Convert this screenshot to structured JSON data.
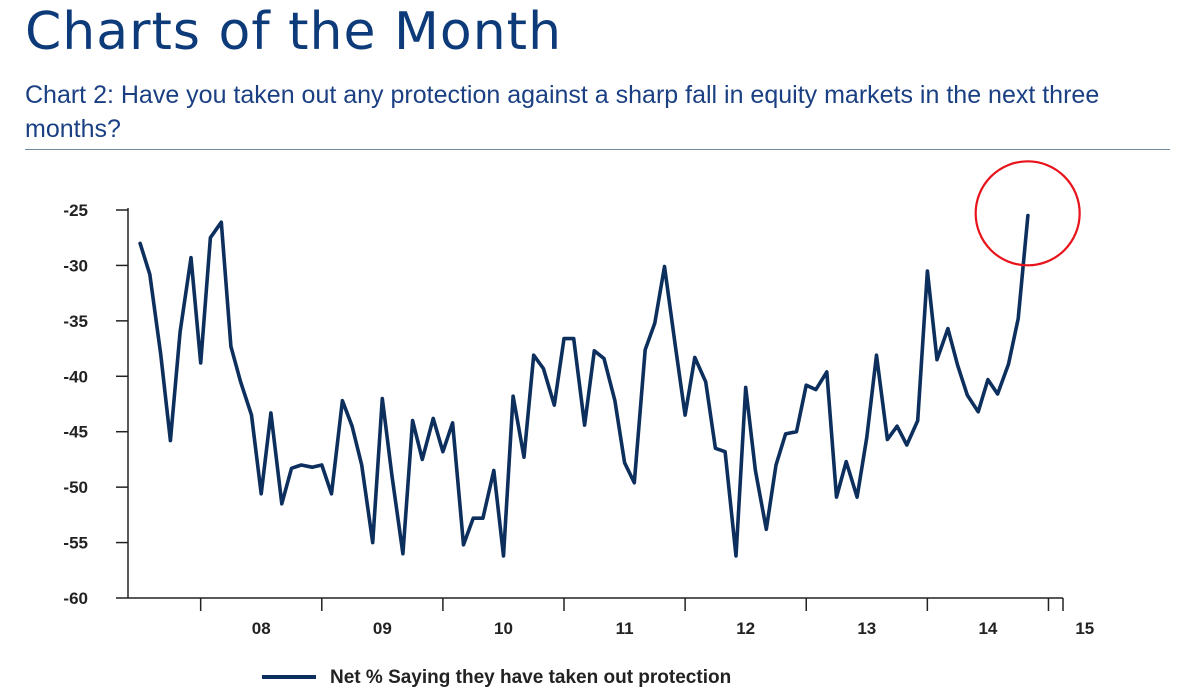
{
  "header": {
    "title": "Charts of the Month",
    "subtitle": "Chart 2: Have you taken out any protection against a sharp fall in equity markets in the next three months?"
  },
  "colors": {
    "line": "#0d2f5e",
    "axis": "#222222",
    "title": "#0d3a78",
    "highlight_circle": "#e8131b"
  },
  "chart_data": {
    "type": "line",
    "title": "Chart 2: Have you taken out any protection against a sharp fall in equity markets in the next three months?",
    "xlabel": "",
    "ylabel": "",
    "ylim": [
      -60,
      -25
    ],
    "yticks": [
      "-25",
      "-30",
      "-35",
      "-40",
      "-45",
      "-50",
      "-55",
      "-60"
    ],
    "ytick_values": [
      -25,
      -30,
      -35,
      -40,
      -45,
      -50,
      -55,
      -60
    ],
    "xlim": [
      2007.4,
      2015.12
    ],
    "x_tick_labels": [
      "08",
      "09",
      "10",
      "11",
      "12",
      "13",
      "14",
      "15"
    ],
    "x_tick_label_positions": [
      2008.5,
      2009.5,
      2010.5,
      2011.5,
      2012.5,
      2013.5,
      2014.5,
      2015.3
    ],
    "x_tick_marks": [
      2008,
      2009,
      2010,
      2011,
      2012,
      2013,
      2014,
      2015
    ],
    "grid": false,
    "legend": "bottom-center",
    "series": [
      {
        "name": "Net % Saying they have taken out protection",
        "points": [
          [
            2007.5,
            -28.0
          ],
          [
            2007.58,
            -30.8
          ],
          [
            2007.67,
            -38.0
          ],
          [
            2007.75,
            -45.8
          ],
          [
            2007.83,
            -36.0
          ],
          [
            2007.92,
            -29.3
          ],
          [
            2008.0,
            -38.8
          ],
          [
            2008.08,
            -27.5
          ],
          [
            2008.17,
            -26.1
          ],
          [
            2008.25,
            -37.3
          ],
          [
            2008.33,
            -40.5
          ],
          [
            2008.42,
            -43.5
          ],
          [
            2008.5,
            -50.6
          ],
          [
            2008.58,
            -43.3
          ],
          [
            2008.67,
            -51.5
          ],
          [
            2008.75,
            -48.3
          ],
          [
            2008.83,
            -48.0
          ],
          [
            2008.92,
            -48.2
          ],
          [
            2009.0,
            -48.0
          ],
          [
            2009.08,
            -50.6
          ],
          [
            2009.17,
            -42.2
          ],
          [
            2009.25,
            -44.5
          ],
          [
            2009.33,
            -48.0
          ],
          [
            2009.42,
            -55.0
          ],
          [
            2009.5,
            -42.0
          ],
          [
            2009.58,
            -49.0
          ],
          [
            2009.67,
            -56.0
          ],
          [
            2009.75,
            -44.0
          ],
          [
            2009.83,
            -47.5
          ],
          [
            2009.92,
            -43.8
          ],
          [
            2010.0,
            -46.8
          ],
          [
            2010.08,
            -44.2
          ],
          [
            2010.17,
            -55.2
          ],
          [
            2010.25,
            -52.8
          ],
          [
            2010.33,
            -52.8
          ],
          [
            2010.42,
            -48.5
          ],
          [
            2010.5,
            -56.2
          ],
          [
            2010.58,
            -41.8
          ],
          [
            2010.67,
            -47.3
          ],
          [
            2010.75,
            -38.1
          ],
          [
            2010.83,
            -39.3
          ],
          [
            2010.92,
            -42.6
          ],
          [
            2011.0,
            -36.6
          ],
          [
            2011.08,
            -36.6
          ],
          [
            2011.17,
            -44.4
          ],
          [
            2011.25,
            -37.7
          ],
          [
            2011.33,
            -38.4
          ],
          [
            2011.42,
            -42.2
          ],
          [
            2011.5,
            -47.8
          ],
          [
            2011.58,
            -49.6
          ],
          [
            2011.67,
            -37.6
          ],
          [
            2011.75,
            -35.2
          ],
          [
            2011.83,
            -30.1
          ],
          [
            2011.92,
            -37.3
          ],
          [
            2012.0,
            -43.5
          ],
          [
            2012.08,
            -38.3
          ],
          [
            2012.17,
            -40.5
          ],
          [
            2012.25,
            -46.5
          ],
          [
            2012.33,
            -46.8
          ],
          [
            2012.42,
            -56.2
          ],
          [
            2012.5,
            -41.0
          ],
          [
            2012.58,
            -48.5
          ],
          [
            2012.67,
            -53.8
          ],
          [
            2012.75,
            -48.0
          ],
          [
            2012.83,
            -45.2
          ],
          [
            2012.92,
            -45.0
          ],
          [
            2013.0,
            -40.8
          ],
          [
            2013.08,
            -41.2
          ],
          [
            2013.17,
            -39.6
          ],
          [
            2013.25,
            -50.9
          ],
          [
            2013.33,
            -47.7
          ],
          [
            2013.42,
            -50.9
          ],
          [
            2013.5,
            -45.5
          ],
          [
            2013.58,
            -38.1
          ],
          [
            2013.67,
            -45.7
          ],
          [
            2013.75,
            -44.5
          ],
          [
            2013.83,
            -46.2
          ],
          [
            2013.92,
            -44.0
          ],
          [
            2014.0,
            -30.5
          ],
          [
            2014.08,
            -38.5
          ],
          [
            2014.17,
            -35.7
          ],
          [
            2014.25,
            -39.0
          ],
          [
            2014.33,
            -41.7
          ],
          [
            2014.42,
            -43.2
          ],
          [
            2014.5,
            -40.3
          ],
          [
            2014.58,
            -41.6
          ],
          [
            2014.67,
            -38.9
          ],
          [
            2014.75,
            -34.8
          ],
          [
            2014.83,
            -25.5
          ]
        ]
      }
    ],
    "annotations": [
      {
        "type": "circle",
        "label": "highlight",
        "center": [
          2014.82,
          -25.3
        ],
        "note": "circled latest reading"
      }
    ]
  }
}
